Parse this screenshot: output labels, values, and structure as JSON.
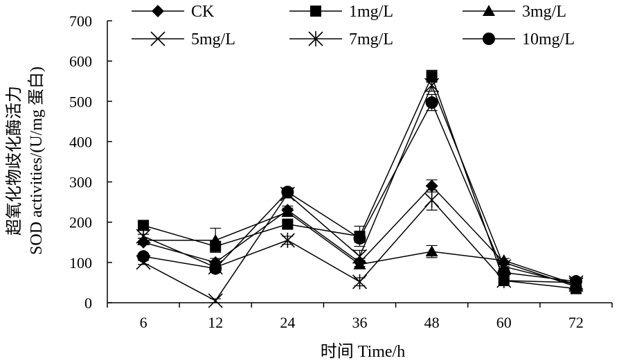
{
  "chart_data": {
    "type": "line",
    "title": "",
    "xlabel": "时间 Time/h",
    "ylabel_lines": [
      "超氧化物歧化酶活力",
      "SOD activities/(U/mg 蛋白)"
    ],
    "categories": [
      "6",
      "12",
      "24",
      "36",
      "48",
      "60",
      "72"
    ],
    "ylim": [
      0,
      700
    ],
    "yticks": [
      0,
      100,
      200,
      300,
      400,
      500,
      600,
      700
    ],
    "grid": false,
    "legend_position": "top",
    "series": [
      {
        "name": "CK",
        "marker": "diamond",
        "values": [
          150,
          100,
          230,
          100,
          290,
          100,
          40
        ],
        "errors": [
          0,
          10,
          10,
          10,
          15,
          10,
          5
        ]
      },
      {
        "name": "1mg/L",
        "marker": "square",
        "values": [
          192,
          140,
          195,
          165,
          562,
          55,
          35
        ],
        "errors": [
          5,
          10,
          10,
          25,
          15,
          5,
          5
        ]
      },
      {
        "name": "3mg/L",
        "marker": "triangle",
        "values": [
          155,
          155,
          225,
          95,
          127,
          105,
          45
        ],
        "errors": [
          5,
          30,
          10,
          10,
          15,
          5,
          5
        ]
      },
      {
        "name": "5mg/L",
        "marker": "x",
        "values": [
          100,
          5,
          270,
          115,
          540,
          90,
          45
        ],
        "errors": [
          5,
          5,
          10,
          15,
          15,
          5,
          5
        ]
      },
      {
        "name": "7mg/L",
        "marker": "asterisk",
        "values": [
          165,
          88,
          155,
          52,
          255,
          55,
          50
        ],
        "errors": [
          5,
          10,
          10,
          10,
          25,
          5,
          5
        ]
      },
      {
        "name": "10mg/L",
        "marker": "circle",
        "values": [
          115,
          85,
          275,
          160,
          497,
          75,
          53
        ],
        "errors": [
          5,
          10,
          10,
          10,
          20,
          5,
          5
        ]
      }
    ]
  }
}
